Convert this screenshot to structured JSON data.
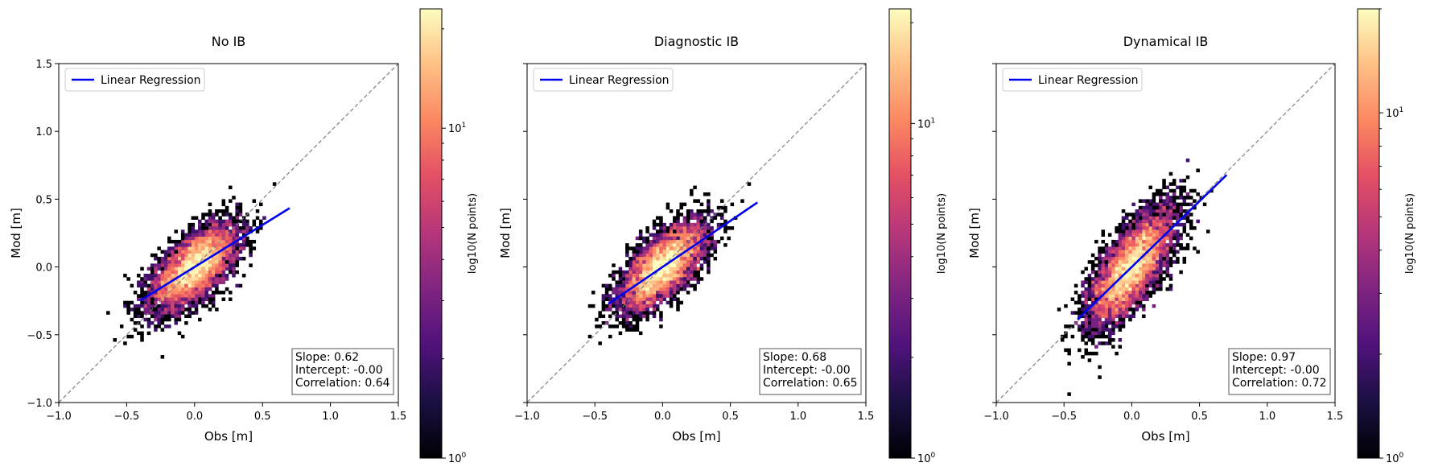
{
  "chart_data": [
    {
      "type": "heatmap",
      "title": "No IB",
      "xlabel": "Obs [m]",
      "ylabel": "Mod [m]",
      "xlim": [
        -1.0,
        1.5
      ],
      "ylim": [
        -1.0,
        1.5
      ],
      "xticks": [
        "−1.0",
        "−0.5",
        "0.0",
        "0.5",
        "1.0",
        "1.5"
      ],
      "yticks": [
        "−1.0",
        "−0.5",
        "0.0",
        "0.5",
        "1.0",
        "1.5"
      ],
      "show_yticklabels": true,
      "identity_line": true,
      "legend": "Linear Regression",
      "regression": {
        "x_start": -0.4,
        "x_end": 0.7,
        "slope": 0.62,
        "intercept": 0.0
      },
      "cloud": {
        "x_mean": 0.0,
        "y_mean": 0.0,
        "x_spread": 0.16,
        "y_spread": 0.14,
        "y_noise": 0.12
      },
      "stats": {
        "slope": "Slope: 0.62",
        "intercept": "Intercept: -0.00",
        "correlation": "Correlation: 0.64"
      },
      "colorbar": {
        "label": "log10(N points)",
        "ticks": [
          "10",
          "10"
        ],
        "tick_exponents": [
          "0",
          "1"
        ],
        "tick_values": [
          1,
          10
        ],
        "vmin": 1,
        "vmax": 23,
        "colormap": "magma"
      }
    },
    {
      "type": "heatmap",
      "title": "Diagnostic IB",
      "xlabel": "Obs [m]",
      "ylabel": "Mod [m]",
      "xlim": [
        -1.0,
        1.5
      ],
      "ylim": [
        -1.0,
        1.5
      ],
      "xticks": [
        "−1.0",
        "−0.5",
        "0.0",
        "0.5",
        "1.0",
        "1.5"
      ],
      "yticks": [],
      "show_yticklabels": false,
      "identity_line": true,
      "legend": "Linear Regression",
      "regression": {
        "x_start": -0.4,
        "x_end": 0.7,
        "slope": 0.68,
        "intercept": 0.0
      },
      "cloud": {
        "x_mean": 0.0,
        "y_mean": 0.0,
        "x_spread": 0.16,
        "y_spread": 0.15,
        "y_noise": 0.12
      },
      "stats": {
        "slope": "Slope: 0.68",
        "intercept": "Intercept: -0.00",
        "correlation": "Correlation: 0.65"
      },
      "colorbar": {
        "label": "log10(N points)",
        "ticks": [
          "10",
          "10"
        ],
        "tick_exponents": [
          "0",
          "1"
        ],
        "tick_values": [
          1,
          10
        ],
        "vmin": 1,
        "vmax": 22,
        "colormap": "magma"
      }
    },
    {
      "type": "heatmap",
      "title": "Dynamical IB",
      "xlabel": "Obs [m]",
      "ylabel": "Mod [m]",
      "xlim": [
        -1.0,
        1.5
      ],
      "ylim": [
        -1.0,
        1.5
      ],
      "xticks": [
        "−1.0",
        "−0.5",
        "0.0",
        "0.5",
        "1.0",
        "1.5"
      ],
      "yticks": [],
      "show_yticklabels": false,
      "identity_line": true,
      "legend": "Linear Regression",
      "regression": {
        "x_start": -0.4,
        "x_end": 0.7,
        "slope": 0.97,
        "intercept": 0.0
      },
      "cloud": {
        "x_mean": 0.0,
        "y_mean": 0.0,
        "x_spread": 0.16,
        "y_spread": 0.2,
        "y_noise": 0.15
      },
      "stats": {
        "slope": "Slope: 0.97",
        "intercept": "Intercept: -0.00",
        "correlation": "Correlation: 0.72"
      },
      "colorbar": {
        "label": "log10(N points)",
        "ticks": [
          "10",
          "10"
        ],
        "tick_exponents": [
          "0",
          "1"
        ],
        "tick_values": [
          1,
          10
        ],
        "vmin": 1,
        "vmax": 20,
        "colormap": "magma"
      }
    }
  ],
  "colors": {
    "regression": "#0000ee",
    "identity": "#808080",
    "axis": "#000000"
  }
}
